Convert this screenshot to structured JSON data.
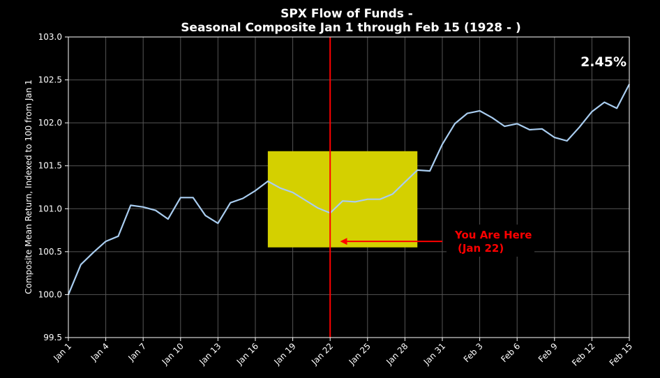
{
  "chart_data": {
    "type": "line",
    "title": "SPX Flow of Funds -",
    "subtitle": "Seasonal Composite Jan 1 through Feb 15 (1928 - )",
    "ylabel": "Composite Mean Return, Indexed to 100 from Jan 1",
    "xlabel": "",
    "ylim": [
      99.5,
      103.0
    ],
    "yticks": [
      99.5,
      100.0,
      100.5,
      101.0,
      101.5,
      102.0,
      102.5,
      103.0
    ],
    "ytick_labels": [
      "99.5",
      "100.0",
      "100.5",
      "101.0",
      "101.5",
      "102.0",
      "102.5",
      "103.0"
    ],
    "xlim": [
      0,
      45
    ],
    "xtick_positions": [
      0,
      3,
      6,
      9,
      12,
      15,
      18,
      21,
      24,
      27,
      30,
      33,
      36,
      39,
      42,
      45
    ],
    "xtick_labels": [
      "Jan 1",
      "Jan 4",
      "Jan 7",
      "Jan 10",
      "Jan 13",
      "Jan 16",
      "Jan 19",
      "Jan 22",
      "Jan 25",
      "Jan 28",
      "Jan 31",
      "Feb 3",
      "Feb 6",
      "Feb 9",
      "Feb 12",
      "Feb 15"
    ],
    "grid": true,
    "line_color": "#a9cdf0",
    "series": [
      {
        "values": [
          100.0,
          100.35,
          100.49,
          100.62,
          100.68,
          101.04,
          101.02,
          100.98,
          100.88,
          101.13,
          101.13,
          100.92,
          100.83,
          101.07,
          101.12,
          101.21,
          101.32,
          101.24,
          101.19,
          101.1,
          101.01,
          100.95,
          101.09,
          101.08,
          101.11,
          101.11,
          101.17,
          101.31,
          101.45,
          101.44,
          101.75,
          101.99,
          102.11,
          102.14,
          102.06,
          101.96,
          101.99,
          101.92,
          101.93,
          101.83,
          101.79,
          101.95,
          102.13,
          102.24,
          102.17,
          102.45
        ]
      }
    ],
    "highlight_box": {
      "x_start": 16.0,
      "x_end": 28.0,
      "y_start": 100.55,
      "y_end": 101.67,
      "color": "#d4d000"
    },
    "marker_line": {
      "x": 21,
      "color": "#ff0000"
    },
    "annotation": {
      "line1": "You Are Here",
      "line2": "(Jan 22)",
      "arrow_from_x": 30.0,
      "arrow_to_x": 21.8,
      "arrow_y": 100.62,
      "color": "#ff0000"
    },
    "end_label": "2.45%"
  }
}
